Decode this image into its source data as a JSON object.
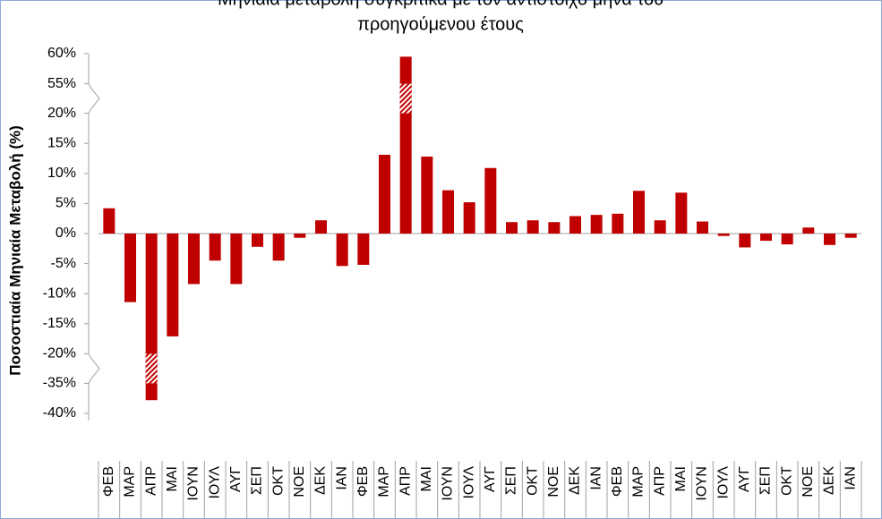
{
  "chart_data": {
    "type": "bar",
    "title": [
      "Μηνιαία μεταβολή συγκριτικά με τον αντίστοιχο μήνα του",
      "προηγούμενου έτους"
    ],
    "y_label": "Ποσοστιαία Μηνιαία Μεταβολή (%)",
    "categories": [
      "ΦΕΒ",
      "ΜΑΡ",
      "ΑΠΡ",
      "ΜΑΙ",
      "ΙΟΥΝ",
      "ΙΟΥΛ",
      "ΑΥΓ",
      "ΣΕΠ",
      "ΟΚΤ",
      "ΝΟΕ",
      "ΔΕΚ",
      "ΙΑΝ",
      "ΦΕΒ",
      "ΜΑΡ",
      "ΑΠΡ",
      "ΜΑΙ",
      "ΙΟΥΝ",
      "ΙΟΥΛ",
      "ΑΥΓ",
      "ΣΕΠ",
      "ΟΚΤ",
      "ΝΟΕ",
      "ΔΕΚ",
      "ΙΑΝ",
      "ΦΕΒ",
      "ΜΑΡ",
      "ΑΠΡ",
      "ΜΑΙ",
      "ΙΟΥΝ",
      "ΙΟΥΛ",
      "ΑΥΓ",
      "ΣΕΠ",
      "ΟΚΤ",
      "ΝΟΕ",
      "ΔΕΚ",
      "ΙΑΝ"
    ],
    "values": [
      4.2,
      -11.4,
      -37.8,
      -17.1,
      -8.4,
      -4.5,
      -8.4,
      -2.2,
      -4.5,
      -0.7,
      2.2,
      -5.4,
      -5.2,
      13.1,
      59.5,
      12.8,
      7.2,
      5.2,
      10.9,
      1.9,
      2.2,
      1.9,
      2.9,
      3.1,
      3.3,
      7.1,
      2.2,
      6.8,
      2.0,
      -0.4,
      -2.3,
      -1.2,
      -1.8,
      1.0,
      -1.9,
      -0.7
    ],
    "color": "#c00000",
    "ylim": [
      -40,
      60
    ],
    "axis_breaks": [
      [
        -35,
        -20
      ],
      [
        20,
        55
      ]
    ],
    "yticks": [
      {
        "value": -40,
        "label": "-40%"
      },
      {
        "value": -35,
        "label": "-35%"
      },
      {
        "value": -20,
        "label": "-20%"
      },
      {
        "value": -15,
        "label": "-15%"
      },
      {
        "value": -10,
        "label": "-10%"
      },
      {
        "value": -5,
        "label": "-5%"
      },
      {
        "value": 0,
        "label": "0%"
      },
      {
        "value": 5,
        "label": "5%"
      },
      {
        "value": 10,
        "label": "10%"
      },
      {
        "value": 15,
        "label": "15%"
      },
      {
        "value": 20,
        "label": "20%"
      },
      {
        "value": 55,
        "label": "55%"
      },
      {
        "value": 60,
        "label": "60%"
      }
    ],
    "grid": false
  }
}
